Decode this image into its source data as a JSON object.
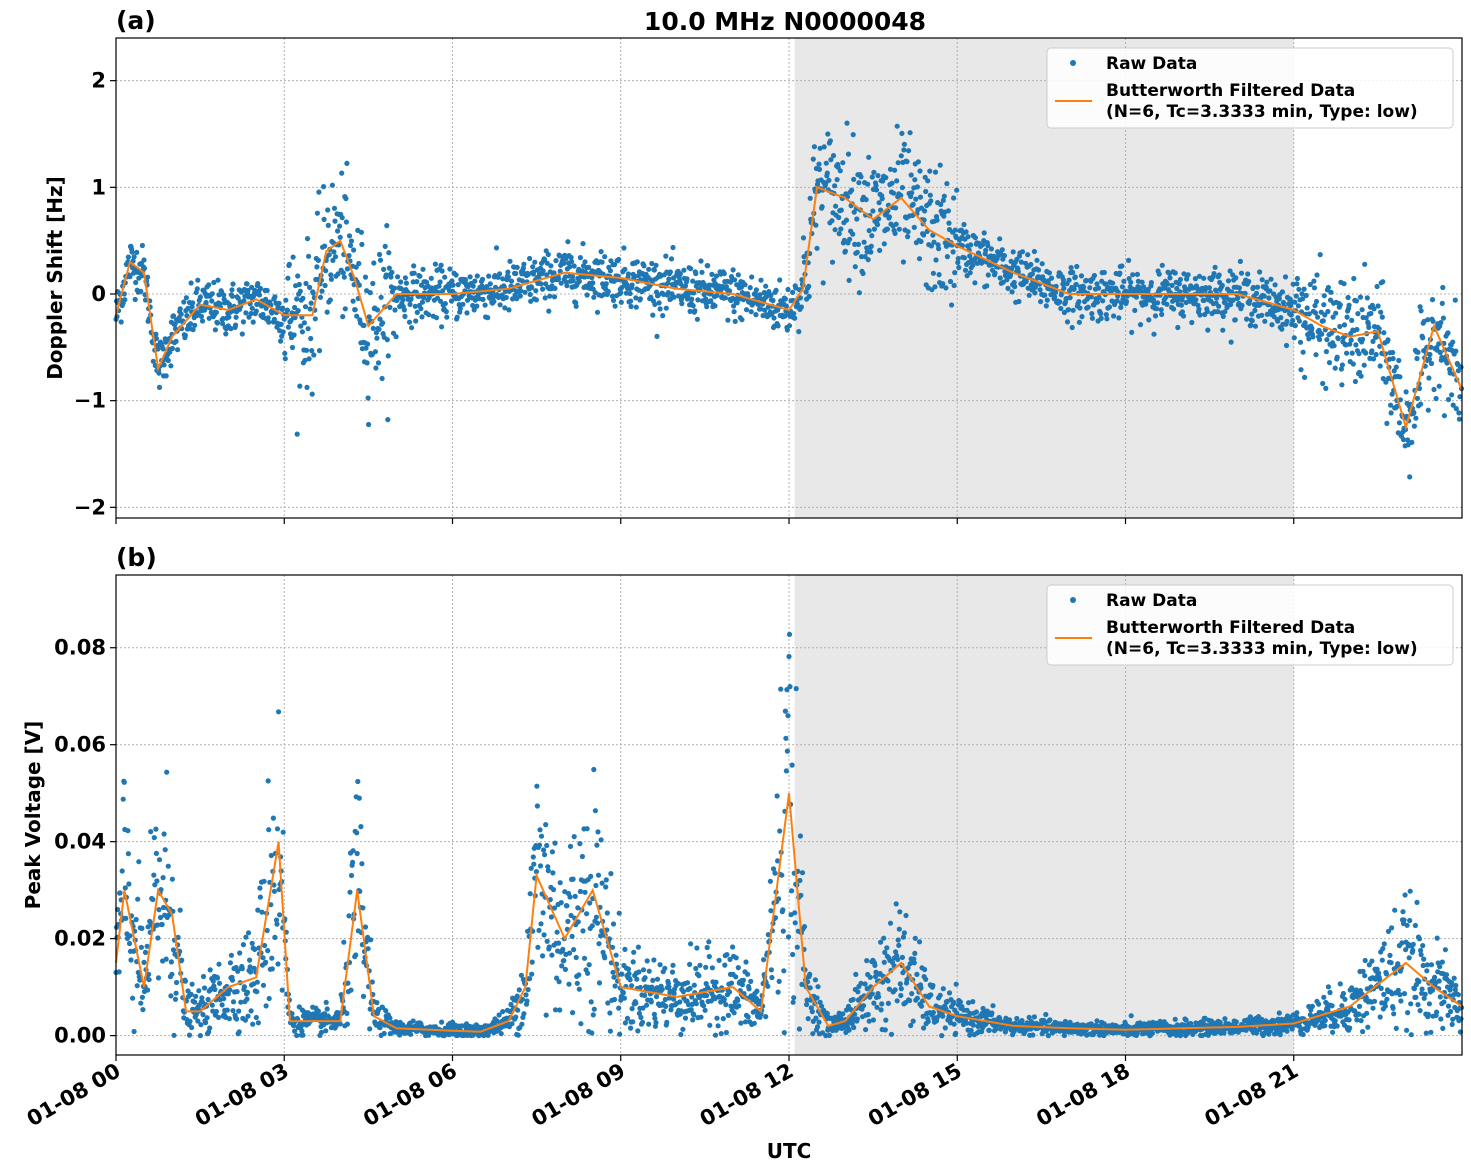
{
  "title": "10.0 MHz N0000048",
  "xlabel": "UTC",
  "colors": {
    "raw": "#1f77b4",
    "filtered": "#ff7f0e",
    "shade": "#e8e8e8"
  },
  "legend": {
    "raw_label": "Raw Data",
    "filtered_line1": "Butterworth Filtered Data",
    "filtered_line2": "(N=6, Tc=3.3333 min, Type: low)",
    "placement": "upper right"
  },
  "x_ticks": [
    "01-08 00",
    "01-08 03",
    "01-08 06",
    "01-08 09",
    "01-08 12",
    "01-08 15",
    "01-08 18",
    "01-08 21"
  ],
  "chart_data": [
    {
      "panel_label": "(a)",
      "type": "scatter+line",
      "ylabel": "Doppler Shift [Hz]",
      "xlim_hours": [
        0,
        24
      ],
      "ylim": [
        -2.1,
        2.4
      ],
      "y_ticks": [
        "2",
        "1",
        "0",
        "−1",
        "−2"
      ],
      "y_tick_values": [
        2,
        1,
        0,
        -1,
        -2
      ],
      "shaded_interval_hours": [
        12.1,
        21.0
      ],
      "grid": true,
      "series": [
        {
          "name": "Butterworth Filtered Data",
          "x_hours": [
            0,
            0.25,
            0.5,
            0.75,
            1,
            1.5,
            2,
            2.5,
            3,
            3.5,
            3.75,
            4,
            4.25,
            4.5,
            5,
            6,
            7,
            8,
            9,
            10,
            11,
            12,
            12.25,
            12.5,
            13,
            13.5,
            14,
            14.5,
            15,
            16,
            17,
            18,
            19,
            20,
            21,
            21.5,
            22,
            22.5,
            23,
            23.5,
            24
          ],
          "values": [
            -0.2,
            0.3,
            0.2,
            -0.7,
            -0.4,
            -0.1,
            -0.15,
            -0.05,
            -0.2,
            -0.2,
            0.4,
            0.5,
            0.15,
            -0.3,
            0.0,
            0.0,
            0.05,
            0.2,
            0.15,
            0.05,
            0.0,
            -0.15,
            0.05,
            1.0,
            0.9,
            0.7,
            0.9,
            0.6,
            0.45,
            0.2,
            0.0,
            0.0,
            0.0,
            0.0,
            -0.15,
            -0.3,
            -0.4,
            -0.35,
            -1.25,
            -0.3,
            -0.9
          ]
        }
      ]
    },
    {
      "panel_label": "(b)",
      "type": "scatter+line",
      "ylabel": "Peak Voltage [V]",
      "xlim_hours": [
        0,
        24
      ],
      "ylim": [
        -0.004,
        0.095
      ],
      "y_ticks": [
        "0.08",
        "0.06",
        "0.04",
        "0.02",
        "0.00"
      ],
      "y_tick_values": [
        0.08,
        0.06,
        0.04,
        0.02,
        0.0
      ],
      "shaded_interval_hours": [
        12.1,
        21.0
      ],
      "grid": true,
      "series": [
        {
          "name": "Butterworth Filtered Data",
          "x_hours": [
            0,
            0.15,
            0.5,
            0.75,
            1.0,
            1.25,
            1.5,
            2,
            2.5,
            2.9,
            3.1,
            3.5,
            4.0,
            4.3,
            4.6,
            5,
            6,
            6.5,
            7,
            7.3,
            7.5,
            8,
            8.5,
            9,
            10,
            11,
            11.5,
            12,
            12.3,
            12.7,
            13,
            13.5,
            14,
            14.5,
            15,
            16,
            17,
            18,
            19,
            20,
            21,
            22,
            23,
            23.5,
            24
          ],
          "values": [
            0.015,
            0.03,
            0.01,
            0.03,
            0.025,
            0.005,
            0.005,
            0.01,
            0.012,
            0.04,
            0.003,
            0.003,
            0.003,
            0.03,
            0.004,
            0.0015,
            0.001,
            0.0008,
            0.003,
            0.01,
            0.033,
            0.02,
            0.03,
            0.01,
            0.008,
            0.01,
            0.005,
            0.05,
            0.01,
            0.002,
            0.003,
            0.01,
            0.015,
            0.006,
            0.004,
            0.002,
            0.0015,
            0.0012,
            0.0015,
            0.0018,
            0.0025,
            0.006,
            0.015,
            0.01,
            0.006
          ]
        }
      ]
    }
  ]
}
